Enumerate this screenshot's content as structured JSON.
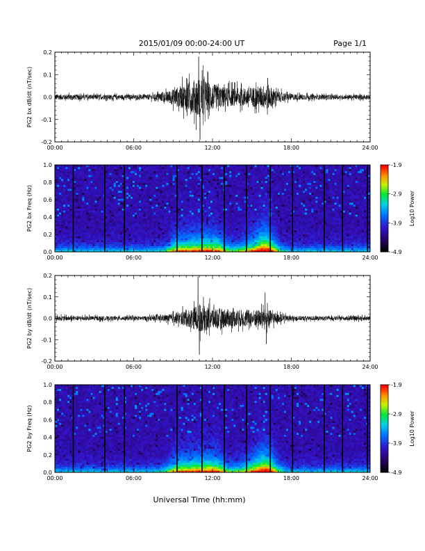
{
  "header": {
    "title": "2015/01/09  00:00-24:00 UT",
    "page": "Page 1/1"
  },
  "xlabel": "Universal Time (hh:mm)",
  "chart_data": [
    {
      "type": "line",
      "ylabel": "PG2 bx dB/dt (nT/sec)",
      "xlim": [
        0,
        24
      ],
      "ylim": [
        -0.2,
        0.2
      ],
      "xticks": [
        "00:00",
        "06:00",
        "12:00",
        "18:00",
        "24:00"
      ],
      "yticks": [
        "-0.2",
        "-0.1",
        "0.0",
        "0.1",
        "0.2"
      ],
      "envelope": {
        "hours": [
          0,
          2,
          4,
          6,
          7.5,
          8.5,
          9.5,
          10.5,
          11,
          11.5,
          12.5,
          13.5,
          14.5,
          15.5,
          16.2,
          17,
          18,
          20,
          22,
          24
        ],
        "amplitude": [
          0.016,
          0.014,
          0.013,
          0.013,
          0.016,
          0.03,
          0.06,
          0.09,
          0.12,
          0.09,
          0.06,
          0.05,
          0.05,
          0.06,
          0.07,
          0.03,
          0.018,
          0.013,
          0.012,
          0.014
        ]
      },
      "peaks": [
        {
          "hour": 10.95,
          "value": 0.18
        },
        {
          "hour": 11.05,
          "value": -0.19
        },
        {
          "hour": 16.2,
          "value": 0.085
        }
      ]
    },
    {
      "type": "heatmap",
      "ylabel": "PG2 bx Freq (Hz)",
      "xlim": [
        0,
        24
      ],
      "ylim": [
        0.0,
        1.0
      ],
      "xticks": [
        "00:00",
        "06:00",
        "12:00",
        "18:00",
        "24:00"
      ],
      "yticks": [
        "0.0",
        "0.2",
        "0.4",
        "0.6",
        "0.8",
        "1.0"
      ],
      "colorbar": {
        "label": "Log10 Power",
        "min": -4.9,
        "max": -1.9,
        "ticks": [
          "-1.9",
          "-2.9",
          "-3.9",
          "-4.9"
        ]
      },
      "gap_lines_hours": [
        1.4,
        3.8,
        5.3,
        9.3,
        11.2,
        12.9,
        14.6,
        16.4,
        18.1,
        20.5,
        21.9,
        23.8
      ]
    },
    {
      "type": "line",
      "ylabel": "PG2 by dB/dt (nT/sec)",
      "xlim": [
        0,
        24
      ],
      "ylim": [
        -0.2,
        0.2
      ],
      "xticks": [
        "00:00",
        "06:00",
        "12:00",
        "18:00",
        "24:00"
      ],
      "yticks": [
        "-0.2",
        "-0.1",
        "0.0",
        "0.1",
        "0.2"
      ],
      "envelope": {
        "hours": [
          0,
          2,
          4,
          6,
          7.5,
          8.5,
          9.5,
          10.5,
          11,
          11.5,
          12.5,
          13.5,
          14.5,
          15.5,
          16.2,
          17,
          18,
          20,
          22,
          24
        ],
        "amplitude": [
          0.014,
          0.013,
          0.012,
          0.012,
          0.014,
          0.02,
          0.035,
          0.06,
          0.08,
          0.07,
          0.06,
          0.05,
          0.05,
          0.05,
          0.055,
          0.025,
          0.014,
          0.012,
          0.011,
          0.013
        ]
      },
      "peaks": [
        {
          "hour": 10.9,
          "value": 0.195
        },
        {
          "hour": 11.0,
          "value": -0.17
        },
        {
          "hour": 16.0,
          "value": 0.12
        },
        {
          "hour": 16.1,
          "value": -0.12
        }
      ]
    },
    {
      "type": "heatmap",
      "ylabel": "PG2 by Freq (Hz)",
      "xlim": [
        0,
        24
      ],
      "ylim": [
        0.0,
        1.0
      ],
      "xticks": [
        "00:00",
        "06:00",
        "12:00",
        "18:00",
        "24:00"
      ],
      "yticks": [
        "0.0",
        "0.2",
        "0.4",
        "0.6",
        "0.8",
        "1.0"
      ],
      "colorbar": {
        "label": "Log10 Power",
        "min": -4.9,
        "max": -1.9,
        "ticks": [
          "-1.9",
          "-2.9",
          "-3.9",
          "-4.9"
        ]
      },
      "gap_lines_hours": [
        1.4,
        3.8,
        5.3,
        9.3,
        11.2,
        12.9,
        14.6,
        16.4,
        18.1,
        20.5,
        21.9,
        23.8
      ]
    }
  ]
}
